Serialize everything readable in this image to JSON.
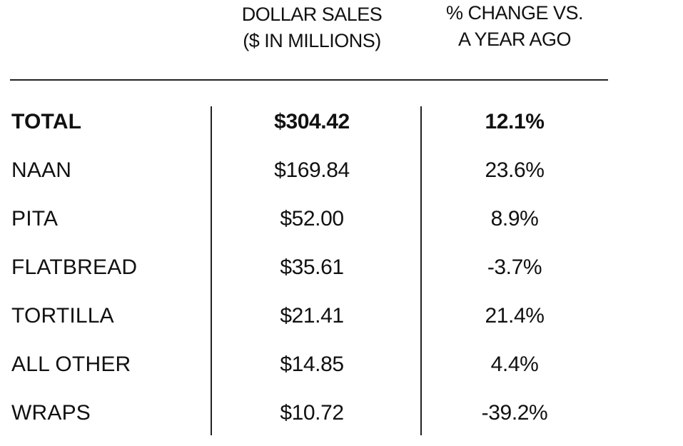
{
  "table": {
    "headers": {
      "sales": [
        "DOLLAR SALES",
        "($ IN MILLIONS)"
      ],
      "change": [
        "% CHANGE VS.",
        "A YEAR AGO"
      ]
    },
    "rows": [
      {
        "category": "TOTAL",
        "sales": "$304.42",
        "change": "12.1%"
      },
      {
        "category": "NAAN",
        "sales": "$169.84",
        "change": "23.6%"
      },
      {
        "category": "PITA",
        "sales": "$52.00",
        "change": "8.9%"
      },
      {
        "category": "FLATBREAD",
        "sales": "$35.61",
        "change": "-3.7%"
      },
      {
        "category": "TORTILLA",
        "sales": "$21.41",
        "change": "21.4%"
      },
      {
        "category": "ALL OTHER",
        "sales": "$14.85",
        "change": "4.4%"
      },
      {
        "category": "WRAPS",
        "sales": "$10.72",
        "change": "-39.2%"
      }
    ]
  },
  "chart_data": {
    "type": "table",
    "columns": [
      "",
      "DOLLAR SALES ($ IN MILLIONS)",
      "% CHANGE VS. A YEAR AGO"
    ],
    "categories": [
      "TOTAL",
      "NAAN",
      "PITA",
      "FLATBREAD",
      "TORTILLA",
      "ALL OTHER",
      "WRAPS"
    ],
    "series": [
      {
        "name": "DOLLAR SALES ($ IN MILLIONS)",
        "values": [
          304.42,
          169.84,
          52.0,
          35.61,
          21.41,
          14.85,
          10.72
        ]
      },
      {
        "name": "% CHANGE VS. A YEAR AGO",
        "values": [
          12.1,
          23.6,
          8.9,
          -3.7,
          21.4,
          4.4,
          -39.2
        ]
      }
    ]
  }
}
